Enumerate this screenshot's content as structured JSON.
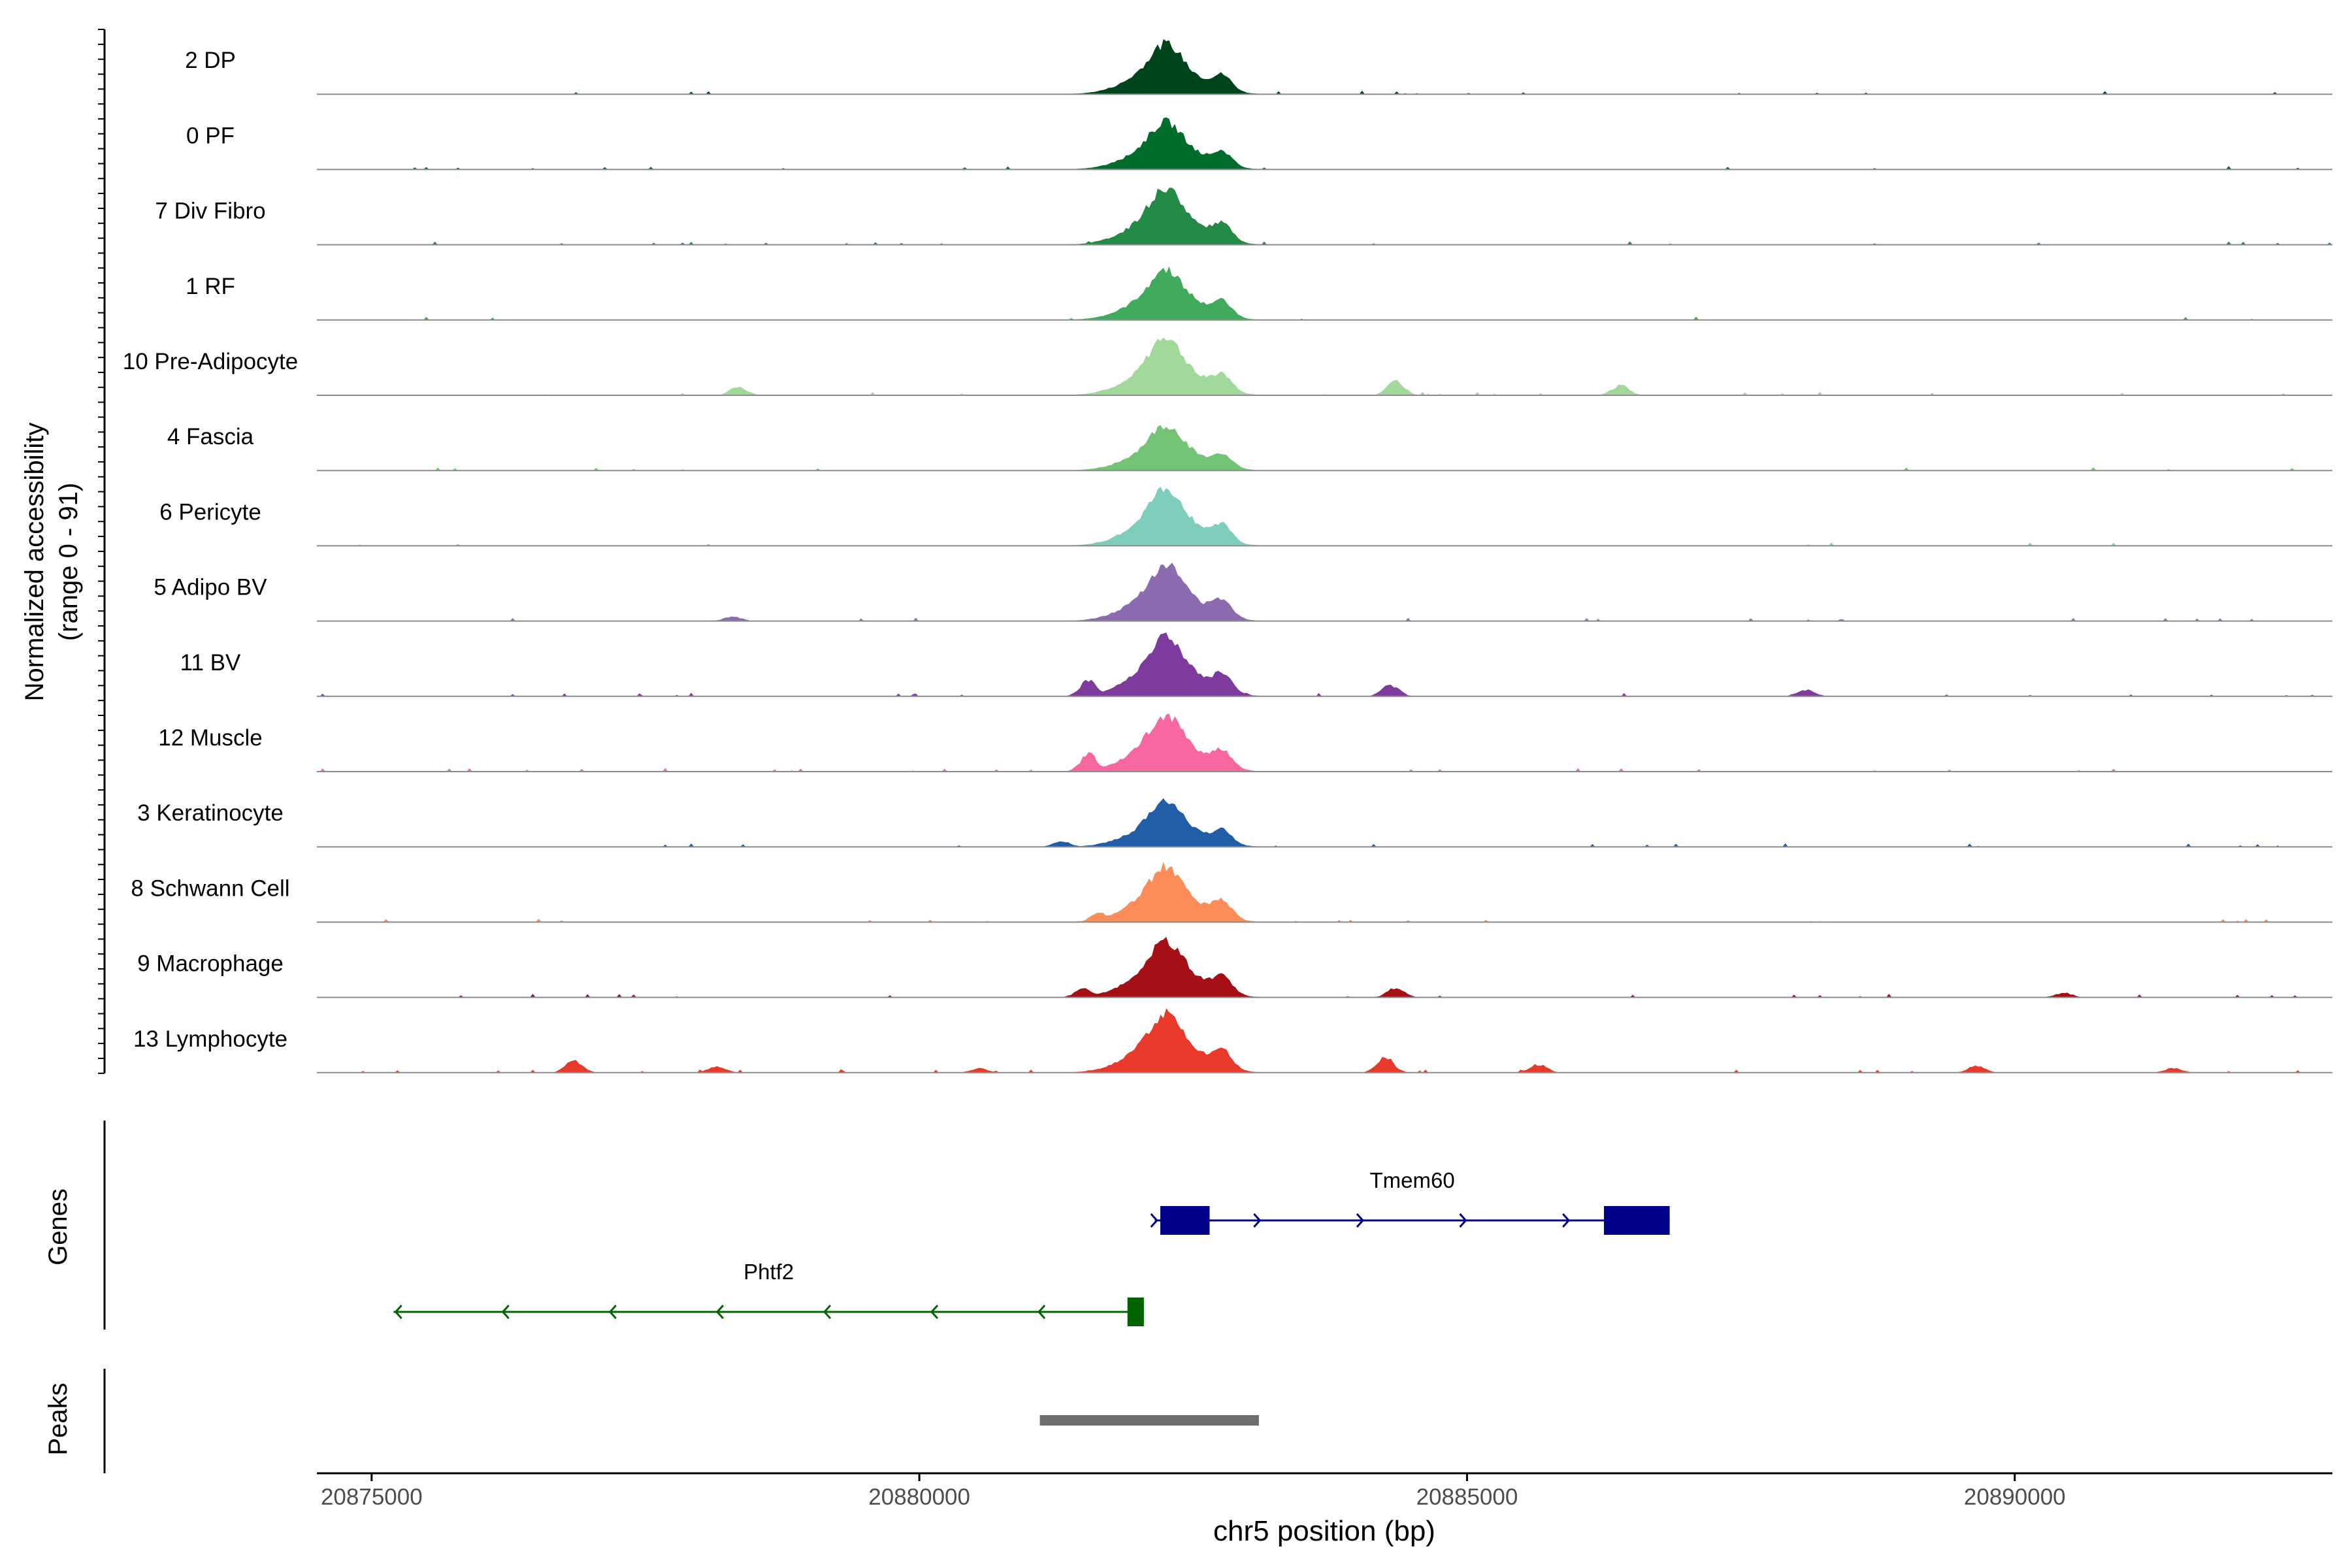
{
  "chart_data": {
    "type": "area",
    "chromosome": "chr5",
    "xlabel": "chr5 position (bp)",
    "ylabel_line1": "Normalized accessibility",
    "ylabel_line2": "(range 0 - 91)",
    "y_range": [
      0,
      91
    ],
    "xlim": [
      20874500,
      20892900
    ],
    "x_ticks": [
      20875000,
      20880000,
      20885000,
      20890000
    ],
    "x_tick_labels": [
      "20875000",
      "20880000",
      "20885000",
      "20890000"
    ],
    "main_peak": {
      "start": 20881150,
      "end": 20883100,
      "summit": 20882250
    },
    "tracks": [
      {
        "name": "2 DP",
        "color": "#00441b",
        "peak_height": 0.85,
        "background": 0.05,
        "minor_peaks": []
      },
      {
        "name": "0 PF",
        "color": "#006d2c",
        "peak_height": 0.8,
        "background": 0.05,
        "minor_peaks": []
      },
      {
        "name": "7 Div Fibro",
        "color": "#238b45",
        "peak_height": 0.95,
        "background": 0.08,
        "minor_peaks": []
      },
      {
        "name": "1 RF",
        "color": "#41ab5d",
        "peak_height": 0.85,
        "background": 0.05,
        "minor_peaks": []
      },
      {
        "name": "10 Pre-Adipocyte",
        "color": "#a1d99b",
        "peak_height": 0.95,
        "background": 0.1,
        "minor_peaks": [
          {
            "pos": 20878350,
            "h": 0.15
          },
          {
            "pos": 20884350,
            "h": 0.25
          },
          {
            "pos": 20886400,
            "h": 0.18
          }
        ]
      },
      {
        "name": "4 Fascia",
        "color": "#74c476",
        "peak_height": 0.75,
        "background": 0.05,
        "minor_peaks": []
      },
      {
        "name": "6 Pericyte",
        "color": "#7fcdbb",
        "peak_height": 0.95,
        "background": 0.05,
        "minor_peaks": []
      },
      {
        "name": "5 Adipo BV",
        "color": "#8c6bb1",
        "peak_height": 0.95,
        "background": 0.05,
        "minor_peaks": [
          {
            "pos": 20878300,
            "h": 0.08
          }
        ]
      },
      {
        "name": "11 BV",
        "color": "#7f3a9d",
        "peak_height": 1.0,
        "background": 0.1,
        "minor_peaks": [
          {
            "pos": 20881550,
            "h": 0.3
          },
          {
            "pos": 20884300,
            "h": 0.2
          },
          {
            "pos": 20888100,
            "h": 0.12
          }
        ]
      },
      {
        "name": "12 Muscle",
        "color": "#f768a1",
        "peak_height": 0.95,
        "background": 0.1,
        "minor_peaks": [
          {
            "pos": 20881550,
            "h": 0.3
          }
        ]
      },
      {
        "name": "3 Keratinocyte",
        "color": "#225ea8",
        "peak_height": 0.75,
        "background": 0.06,
        "minor_peaks": [
          {
            "pos": 20881300,
            "h": 0.1
          }
        ]
      },
      {
        "name": "8 Schwann Cell",
        "color": "#fc8d59",
        "peak_height": 0.95,
        "background": 0.06,
        "minor_peaks": [
          {
            "pos": 20881650,
            "h": 0.18
          }
        ]
      },
      {
        "name": "9 Macrophage",
        "color": "#a50f15",
        "peak_height": 0.95,
        "background": 0.1,
        "minor_peaks": [
          {
            "pos": 20881500,
            "h": 0.15
          },
          {
            "pos": 20884350,
            "h": 0.18
          },
          {
            "pos": 20890450,
            "h": 0.08
          }
        ]
      },
      {
        "name": "13 Lymphocyte",
        "color": "#e8392a",
        "peak_height": 1.0,
        "background": 0.12,
        "minor_peaks": [
          {
            "pos": 20876850,
            "h": 0.22
          },
          {
            "pos": 20878150,
            "h": 0.12
          },
          {
            "pos": 20880550,
            "h": 0.08
          },
          {
            "pos": 20881950,
            "h": 0.25
          },
          {
            "pos": 20884250,
            "h": 0.28
          },
          {
            "pos": 20885650,
            "h": 0.15
          },
          {
            "pos": 20889650,
            "h": 0.12
          },
          {
            "pos": 20891450,
            "h": 0.08
          }
        ]
      }
    ],
    "genes_label": "Genes",
    "genes": [
      {
        "name": "Tmem60",
        "start": 20882150,
        "end": 20886850,
        "strand": "+",
        "color": "#00008b",
        "exons": [
          [
            20882200,
            20882650
          ],
          [
            20886250,
            20886850
          ]
        ]
      },
      {
        "name": "Phtf2",
        "start": 20875200,
        "end": 20882050,
        "strand": "-",
        "color": "#006400",
        "exons": [
          [
            20881900,
            20882050
          ]
        ]
      }
    ],
    "peaks_label": "Peaks",
    "peaks": [
      {
        "start": 20881100,
        "end": 20883100,
        "color": "#6e6e6e"
      }
    ]
  }
}
